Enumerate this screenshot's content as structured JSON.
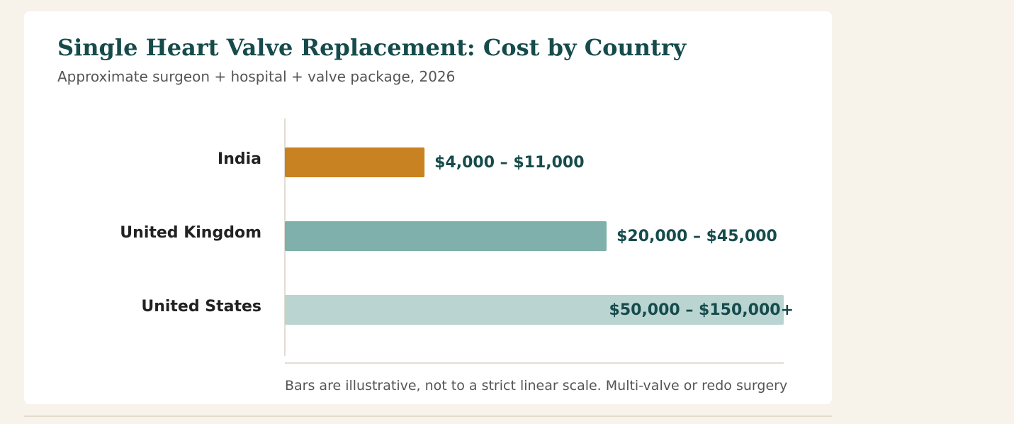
{
  "colors": {
    "title": "#164b4b",
    "subtitle": "#555555",
    "category_label": "#222222",
    "value_label": "#164b4b",
    "axis": "#d8d2c4"
  },
  "chart_data": {
    "type": "bar",
    "orientation": "horizontal",
    "title": "Single Heart Valve Replacement: Cost by Country",
    "subtitle": "Approximate surgeon + hospital + valve package, 2026",
    "categories": [
      "India",
      "United Kingdom",
      "United States"
    ],
    "values": [
      11000,
      45000,
      150000
    ],
    "value_labels": [
      "$4,000 – $11,000",
      "$20,000 – $45,000",
      "$50,000 – $150,000+"
    ],
    "bar_colors": [
      "#c98221",
      "#7fb0ab",
      "#b9d4d1"
    ],
    "relative_lengths": [
      0.28,
      0.645,
      1.0
    ],
    "scale_note": "illustrative, non-linear",
    "note": "Bars are illustrative, not to a strict linear scale. Multi-valve or redo surgery",
    "grid": false,
    "legend": "none"
  }
}
